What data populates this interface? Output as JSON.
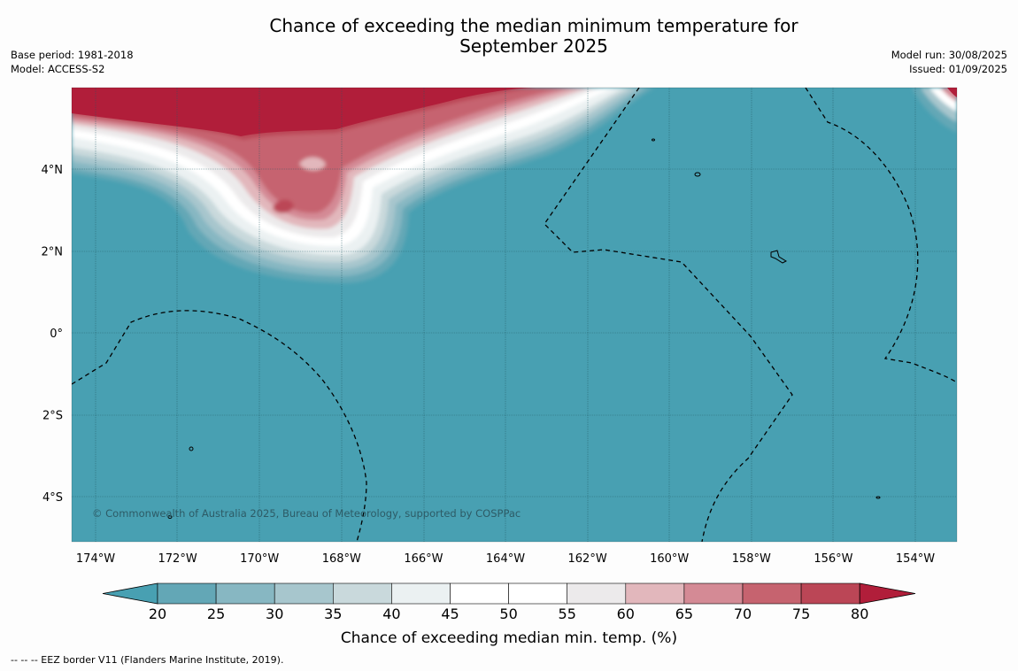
{
  "title_line1": "Chance of exceeding the median minimum temperature for",
  "title_line2": "September 2025",
  "meta_left": {
    "base_period": "Base period: 1981-2018",
    "model": "Model: ACCESS-S2"
  },
  "meta_right": {
    "model_run": "Model run: 30/08/2025",
    "issued": "Issued: 01/09/2025"
  },
  "axes": {
    "lon_ticks": [
      "174°W",
      "172°W",
      "170°W",
      "168°W",
      "166°W",
      "164°W",
      "162°W",
      "160°W",
      "158°W",
      "156°W",
      "154°W"
    ],
    "lat_ticks": [
      "4°N",
      "2°N",
      "0°",
      "2°S",
      "4°S"
    ]
  },
  "copyright": "© Commonwealth of Australia 2025, Bureau of Meteorology, supported by COSPPac",
  "colorbar": {
    "title": "Chance of exceeding median min. temp. (%)",
    "labels": [
      "20",
      "25",
      "30",
      "35",
      "40",
      "45",
      "50",
      "55",
      "60",
      "65",
      "70",
      "75",
      "80"
    ],
    "colors": [
      "#63a7b6",
      "#87b7c2",
      "#a7c6cd",
      "#c9d9dc",
      "#ebf1f2",
      "#ffffff",
      "#ffffff",
      "#eceaeb",
      "#e2b7bc",
      "#d48a95",
      "#c6636f",
      "#bb4656"
    ],
    "under_color": "#48a0b2",
    "over_color": "#b11e3a"
  },
  "map_colors": {
    "ocean_background": "#48a0b2",
    "warm_extreme": "#b11e3a"
  },
  "footnote": "--  --  -- EEZ border V11 (Flanders Marine Institute, 2019)."
}
